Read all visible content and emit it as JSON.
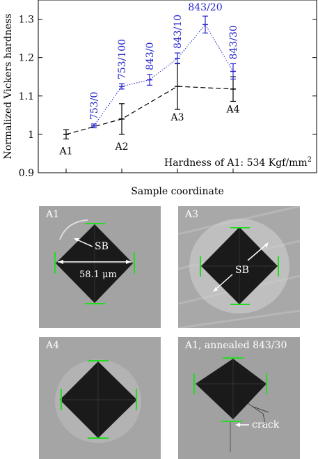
{
  "chart_data": {
    "type": "line",
    "xlabel": "Sample coordinate",
    "ylabel": "Normalized Vickers hardness",
    "ylim": [
      0.9,
      1.35
    ],
    "y_ticks": [
      "0.9",
      "1",
      "1.1",
      "1.2",
      "1.3"
    ],
    "annotation": "Hardness of A1: 534 Kgf/mm²",
    "series": [
      {
        "style": "black-dashed",
        "color": "#000000",
        "points": [
          {
            "x": 1,
            "y": 1.0,
            "err": 0.012,
            "label": "A1"
          },
          {
            "x": 2,
            "y": 1.04,
            "err": 0.04,
            "label": "A2"
          },
          {
            "x": 3,
            "y": 1.125,
            "err": 0.06,
            "label": "A3"
          },
          {
            "x": 4,
            "y": 1.118,
            "err": 0.032,
            "label": "A4"
          }
        ]
      },
      {
        "style": "blue-dotted",
        "color": "#2222cc",
        "points": [
          {
            "x": 1.5,
            "y": 1.022,
            "err": 0.005,
            "label": "753/0"
          },
          {
            "x": 2,
            "y": 1.125,
            "err": 0.007,
            "label": "753/100"
          },
          {
            "x": 2.5,
            "y": 1.142,
            "err": 0.014,
            "label": "843/0"
          },
          {
            "x": 3,
            "y": 1.198,
            "err": 0.014,
            "label": "843/10"
          },
          {
            "x": 3.5,
            "y": 1.286,
            "err": 0.022,
            "label": "843/20"
          },
          {
            "x": 4,
            "y": 1.164,
            "err": 0.02,
            "label": "843/30"
          }
        ]
      }
    ]
  },
  "micrographs": [
    {
      "label": "A1",
      "annotations": [
        "SB",
        "58.1 μm"
      ]
    },
    {
      "label": "A3",
      "annotations": [
        "SB"
      ]
    },
    {
      "label": "A4",
      "annotations": []
    },
    {
      "label": "A1, annealed 843/30",
      "annotations": [
        "crack"
      ]
    }
  ]
}
